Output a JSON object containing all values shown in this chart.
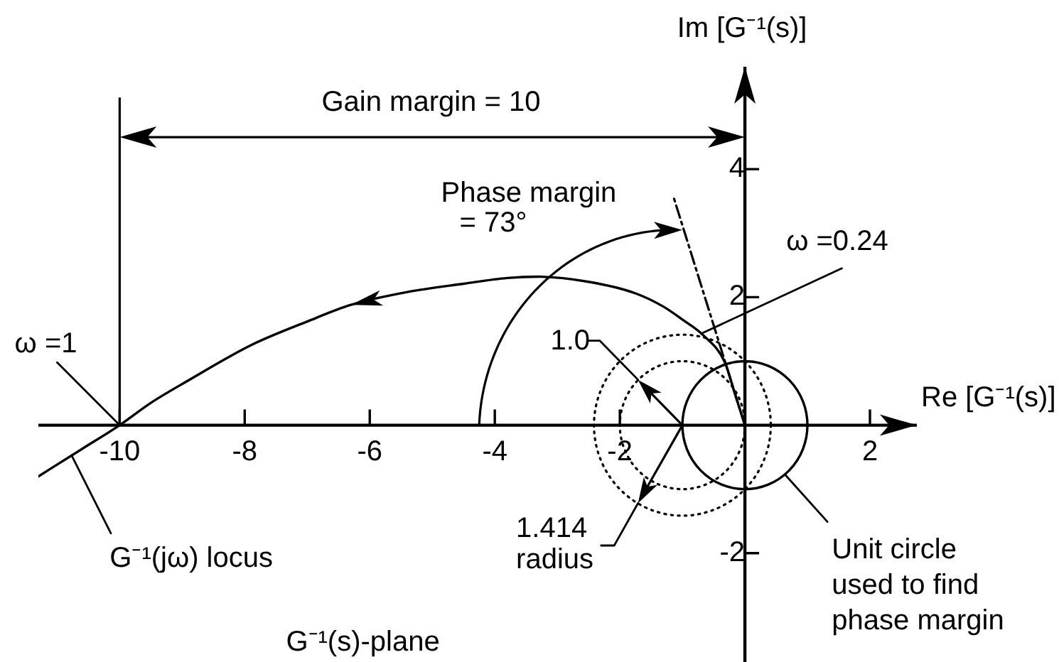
{
  "chart_data": {
    "type": "line",
    "xlabel": "Re [G⁻¹(s)]",
    "ylabel": "Im [G⁻¹(s)]",
    "xlim": [
      -11.3,
      2.75
    ],
    "ylim": [
      -3.7,
      5.6
    ],
    "xticks": [
      -10,
      -8,
      -6,
      -4,
      -2,
      2
    ],
    "yticks": [
      4,
      2,
      -2
    ],
    "marker": "none",
    "series": [
      {
        "color": "#000000",
        "x": [
          -11.3,
          -10.6,
          -10,
          -9.5,
          -8.9,
          -7.9,
          -7,
          -6.3,
          -5.4,
          -4.5,
          -3.8,
          -3.3,
          -2.5,
          -1.75,
          -1.3,
          -1,
          -0.66,
          -0.32,
          -0.16,
          0
        ],
        "values": [
          -0.8,
          -0.37,
          0,
          0.35,
          0.7,
          1.25,
          1.62,
          1.88,
          2.08,
          2.21,
          2.3,
          2.32,
          2.24,
          2.06,
          1.85,
          1.65,
          1.4,
          0.98,
          0.49,
          0
        ]
      },
      {
        "color": "#000000",
        "line_style": "dashed",
        "x": [
          0,
          -1.14
        ],
        "values": [
          0,
          3.56
        ]
      }
    ],
    "ref_lines": [
      {
        "axis": "x",
        "value": -10
      }
    ],
    "annotations": [
      "Gain margin = 10",
      "Phase margin = 73°",
      {
        "text": "ω =0.24",
        "x": -0.7,
        "y": 1.43
      },
      {
        "text": "ω =1",
        "x": -10,
        "y": 0
      },
      {
        "text": "G⁻¹(jω) locus",
        "x": -10.77,
        "y": -0.47
      },
      "1.0",
      "1.414 radius",
      "Unit circle used to find phase margin",
      "G⁻¹(s)-plane"
    ]
  }
}
